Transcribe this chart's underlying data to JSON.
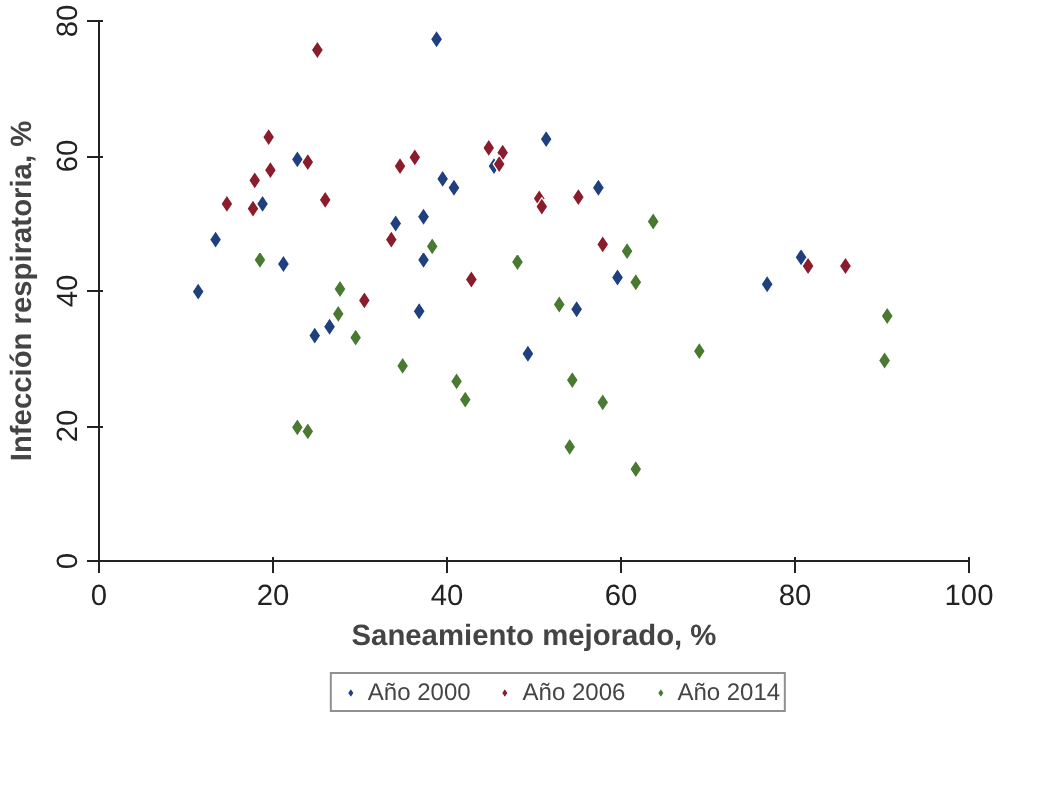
{
  "chart_data": {
    "type": "scatter",
    "xlabel": "Saneamiento mejorado, %",
    "ylabel": "Infección respiratoria, %",
    "xlim": [
      0,
      100
    ],
    "ylim": [
      0,
      80
    ],
    "xticks": [
      0,
      20,
      40,
      60,
      80,
      100
    ],
    "yticks": [
      0,
      20,
      40,
      60,
      80
    ],
    "grid": false,
    "legend": "bottom",
    "marker": "diamond",
    "series": [
      {
        "name": "Año 2000",
        "color": "#1f3f7f",
        "x": [
          38.8,
          22.8,
          18.8,
          13.4,
          21.2,
          39.5,
          40.8,
          34.1,
          37.3,
          37.3,
          11.4,
          36.8,
          26.5,
          24.8,
          51.4,
          45.4,
          57.4,
          59.6,
          80.7,
          76.8,
          54.9,
          49.3
        ],
        "values": [
          77.3,
          59.5,
          52.9,
          47.6,
          44.0,
          56.6,
          55.3,
          50.0,
          51.0,
          44.6,
          39.9,
          37.0,
          34.7,
          33.4,
          62.5,
          58.5,
          55.3,
          42.0,
          45.0,
          41.0,
          37.3,
          30.7
        ]
      },
      {
        "name": "Año 2006",
        "color": "#8b1c2c",
        "x": [
          25.1,
          19.5,
          19.7,
          17.9,
          14.7,
          17.7,
          24.0,
          26.0,
          34.6,
          36.3,
          33.6,
          42.8,
          30.5,
          44.8,
          46.4,
          46.0,
          50.6,
          50.9,
          55.1,
          57.9,
          81.5,
          85.8
        ],
        "values": [
          75.7,
          62.8,
          57.9,
          56.4,
          52.9,
          52.2,
          59.1,
          53.5,
          58.5,
          59.8,
          47.6,
          41.7,
          38.6,
          61.2,
          60.5,
          58.8,
          53.7,
          52.5,
          53.9,
          46.9,
          43.7,
          43.7
        ]
      },
      {
        "name": "Año 2014",
        "color": "#4a7a32",
        "x": [
          18.5,
          38.3,
          27.7,
          27.5,
          29.5,
          34.9,
          41.1,
          42.1,
          22.8,
          24.0,
          63.7,
          60.7,
          48.1,
          61.7,
          52.9,
          90.6,
          69.0,
          90.3,
          54.4,
          57.9,
          54.1,
          61.7
        ],
        "values": [
          44.6,
          46.6,
          40.3,
          36.6,
          33.1,
          28.9,
          26.6,
          23.9,
          19.8,
          19.2,
          50.3,
          45.9,
          44.3,
          41.3,
          38.0,
          36.3,
          31.1,
          29.7,
          26.8,
          23.5,
          16.9,
          13.6
        ]
      }
    ]
  }
}
